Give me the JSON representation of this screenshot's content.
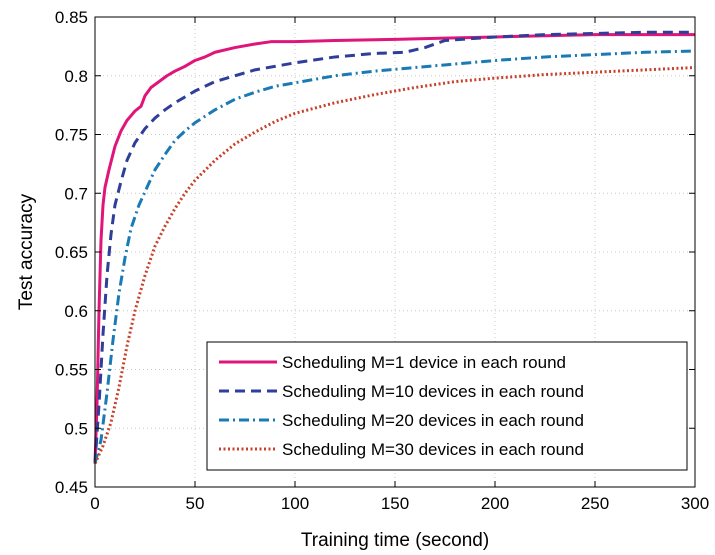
{
  "chart_data": {
    "type": "line",
    "xlabel": "Training time (second)",
    "ylabel": "Test accuracy",
    "xlim": [
      0,
      300
    ],
    "ylim": [
      0.45,
      0.85
    ],
    "xticks": [
      0,
      50,
      100,
      150,
      200,
      250,
      300
    ],
    "yticks": [
      0.45,
      0.5,
      0.55,
      0.6,
      0.65,
      0.7,
      0.75,
      0.8,
      0.85
    ],
    "xtick_labels": [
      "0",
      "50",
      "100",
      "150",
      "200",
      "250",
      "300"
    ],
    "ytick_labels": [
      "0.45",
      "0.5",
      "0.55",
      "0.6",
      "0.65",
      "0.7",
      "0.75",
      "0.8",
      "0.85"
    ],
    "grid": true,
    "legend_position": "bottom-right",
    "series": [
      {
        "name": "Scheduling M=1 device in each round",
        "color": "#e0157a",
        "dash": "solid",
        "points": [
          [
            0,
            0.47
          ],
          [
            1,
            0.52
          ],
          [
            2,
            0.6
          ],
          [
            3,
            0.66
          ],
          [
            4,
            0.69
          ],
          [
            5,
            0.705
          ],
          [
            7,
            0.72
          ],
          [
            10,
            0.74
          ],
          [
            13,
            0.753
          ],
          [
            16,
            0.762
          ],
          [
            20,
            0.77
          ],
          [
            23,
            0.774
          ],
          [
            25,
            0.783
          ],
          [
            28,
            0.79
          ],
          [
            32,
            0.795
          ],
          [
            36,
            0.8
          ],
          [
            40,
            0.804
          ],
          [
            45,
            0.808
          ],
          [
            50,
            0.813
          ],
          [
            55,
            0.816
          ],
          [
            60,
            0.82
          ],
          [
            70,
            0.824
          ],
          [
            80,
            0.827
          ],
          [
            88,
            0.829
          ],
          [
            100,
            0.829
          ],
          [
            120,
            0.83
          ],
          [
            150,
            0.831
          ],
          [
            175,
            0.832
          ],
          [
            200,
            0.833
          ],
          [
            225,
            0.834
          ],
          [
            250,
            0.835
          ],
          [
            275,
            0.835
          ],
          [
            300,
            0.835
          ]
        ]
      },
      {
        "name": "Scheduling M=10 devices in each round",
        "color": "#2e3e99",
        "dash": "dashed",
        "points": [
          [
            0,
            0.47
          ],
          [
            2,
            0.52
          ],
          [
            4,
            0.58
          ],
          [
            6,
            0.63
          ],
          [
            8,
            0.665
          ],
          [
            10,
            0.69
          ],
          [
            13,
            0.71
          ],
          [
            16,
            0.728
          ],
          [
            20,
            0.743
          ],
          [
            25,
            0.755
          ],
          [
            30,
            0.764
          ],
          [
            35,
            0.771
          ],
          [
            40,
            0.777
          ],
          [
            45,
            0.782
          ],
          [
            50,
            0.787
          ],
          [
            60,
            0.795
          ],
          [
            70,
            0.8
          ],
          [
            80,
            0.805
          ],
          [
            90,
            0.808
          ],
          [
            100,
            0.811
          ],
          [
            120,
            0.816
          ],
          [
            140,
            0.819
          ],
          [
            155,
            0.82
          ],
          [
            165,
            0.824
          ],
          [
            175,
            0.83
          ],
          [
            200,
            0.833
          ],
          [
            225,
            0.835
          ],
          [
            250,
            0.836
          ],
          [
            275,
            0.837
          ],
          [
            300,
            0.837
          ]
        ]
      },
      {
        "name": "Scheduling M=20 devices in each round",
        "color": "#1a7ab5",
        "dash": "dashdot",
        "points": [
          [
            0,
            0.47
          ],
          [
            3,
            0.49
          ],
          [
            6,
            0.53
          ],
          [
            9,
            0.575
          ],
          [
            12,
            0.615
          ],
          [
            15,
            0.645
          ],
          [
            18,
            0.67
          ],
          [
            22,
            0.69
          ],
          [
            26,
            0.705
          ],
          [
            30,
            0.72
          ],
          [
            35,
            0.733
          ],
          [
            40,
            0.745
          ],
          [
            45,
            0.753
          ],
          [
            50,
            0.76
          ],
          [
            60,
            0.771
          ],
          [
            70,
            0.78
          ],
          [
            80,
            0.786
          ],
          [
            90,
            0.791
          ],
          [
            100,
            0.794
          ],
          [
            120,
            0.8
          ],
          [
            140,
            0.804
          ],
          [
            160,
            0.807
          ],
          [
            180,
            0.81
          ],
          [
            200,
            0.813
          ],
          [
            225,
            0.816
          ],
          [
            250,
            0.818
          ],
          [
            275,
            0.82
          ],
          [
            300,
            0.821
          ]
        ]
      },
      {
        "name": "Scheduling M=30 devices in each round",
        "color": "#c8402a",
        "dash": "dotted",
        "points": [
          [
            0,
            0.47
          ],
          [
            4,
            0.485
          ],
          [
            8,
            0.505
          ],
          [
            12,
            0.535
          ],
          [
            16,
            0.57
          ],
          [
            20,
            0.6
          ],
          [
            25,
            0.63
          ],
          [
            30,
            0.655
          ],
          [
            35,
            0.672
          ],
          [
            40,
            0.687
          ],
          [
            45,
            0.7
          ],
          [
            50,
            0.711
          ],
          [
            60,
            0.728
          ],
          [
            70,
            0.742
          ],
          [
            80,
            0.752
          ],
          [
            90,
            0.761
          ],
          [
            100,
            0.768
          ],
          [
            120,
            0.777
          ],
          [
            140,
            0.784
          ],
          [
            160,
            0.79
          ],
          [
            180,
            0.795
          ],
          [
            200,
            0.798
          ],
          [
            225,
            0.801
          ],
          [
            250,
            0.803
          ],
          [
            275,
            0.805
          ],
          [
            300,
            0.807
          ]
        ]
      }
    ]
  }
}
